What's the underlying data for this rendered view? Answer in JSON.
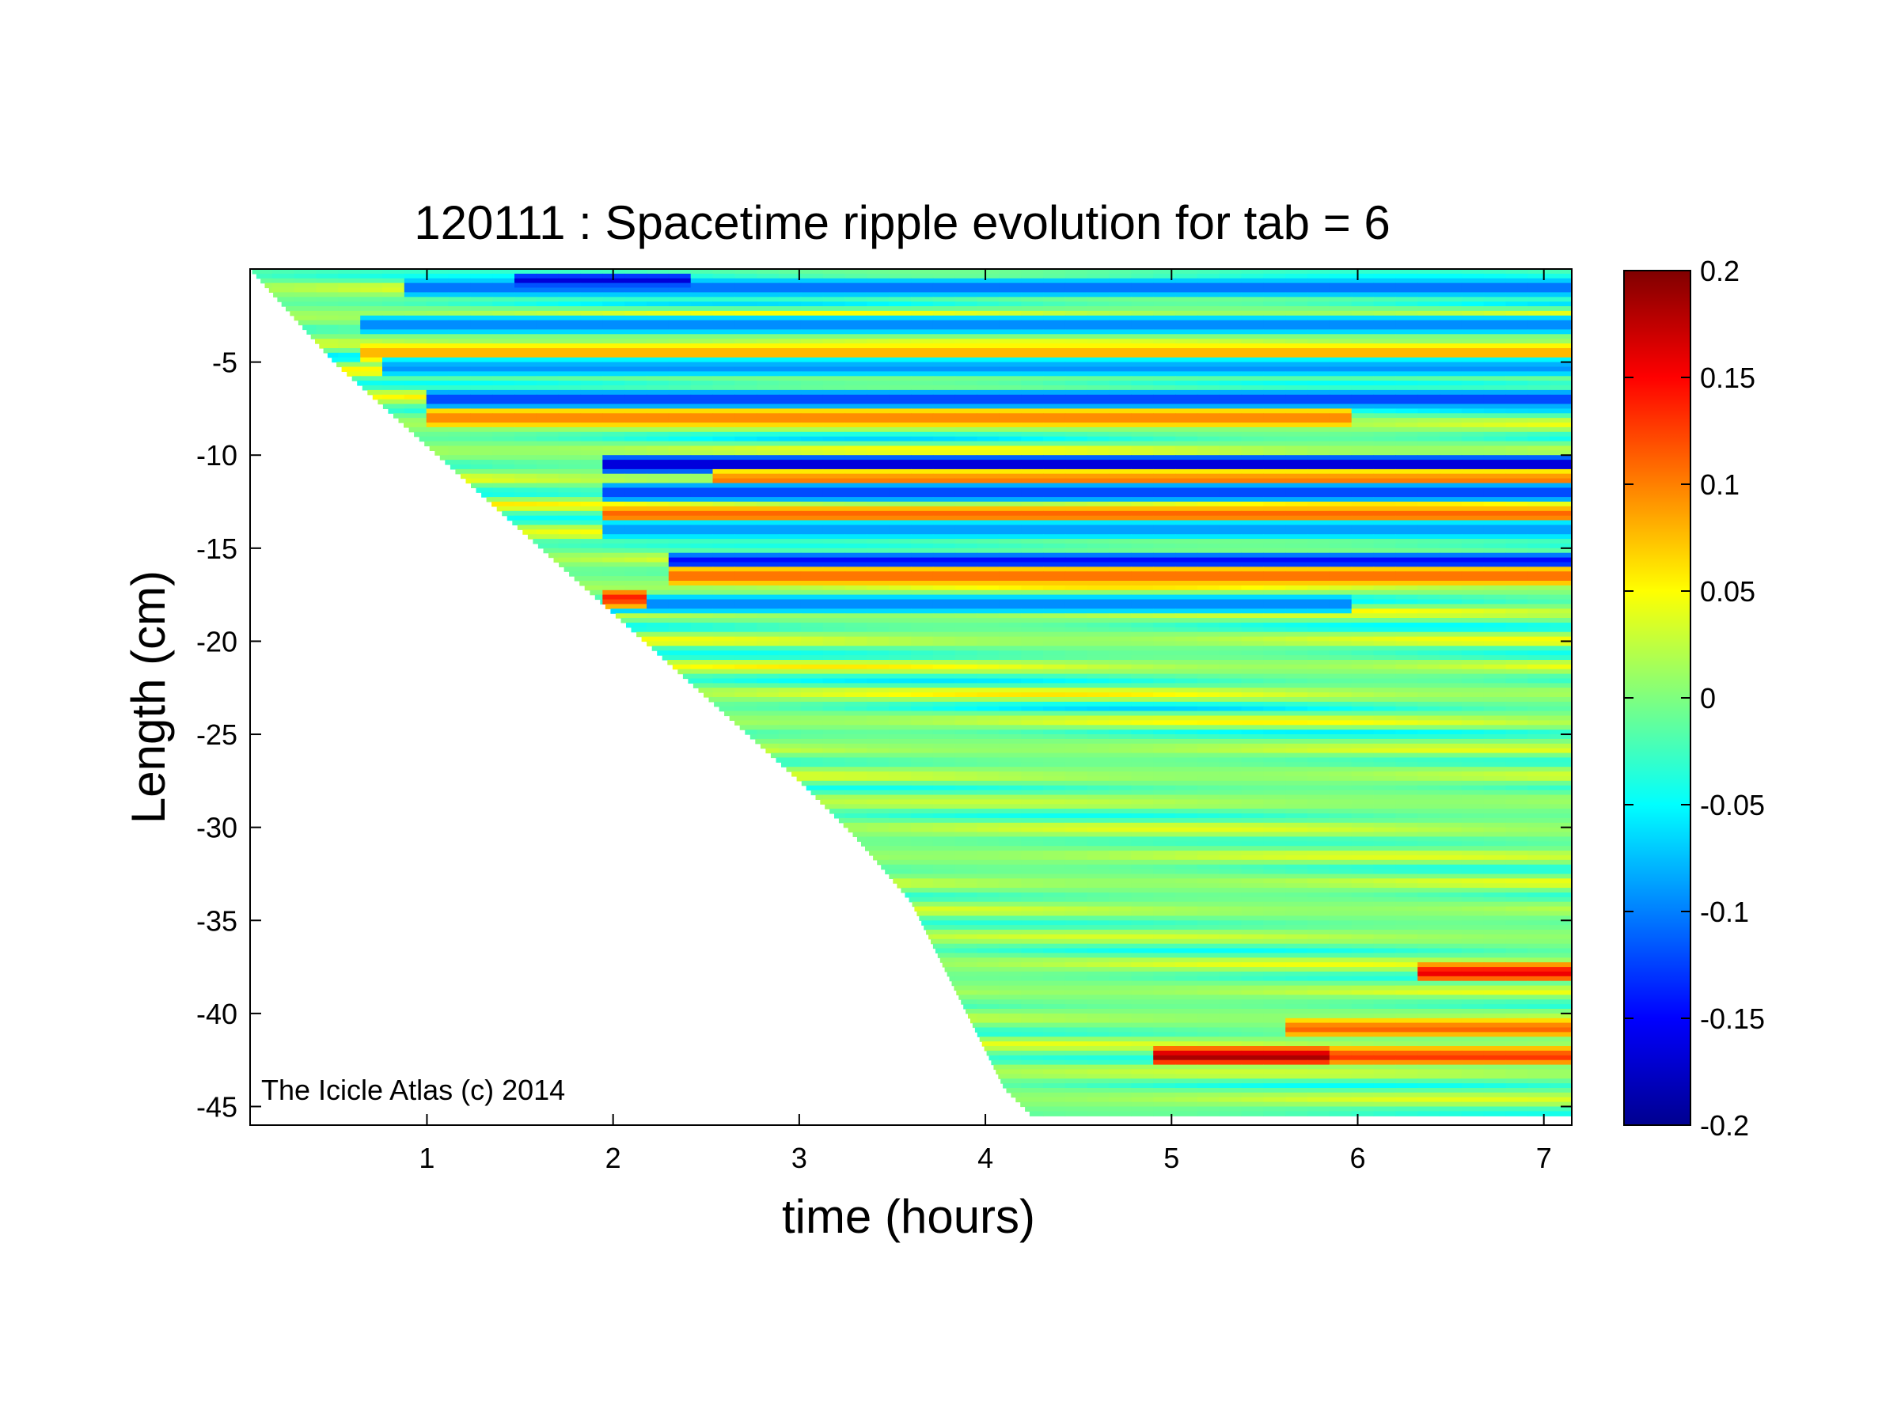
{
  "chart_data": {
    "type": "heatmap",
    "title": "120111 : Spacetime ripple evolution for tab = 6",
    "xlabel": "time (hours)",
    "ylabel": "Length (cm)",
    "xlim": [
      0.05,
      7.15
    ],
    "ylim": [
      -46,
      0
    ],
    "xticks": [
      1,
      2,
      3,
      4,
      5,
      6,
      7
    ],
    "xtick_labels": [
      "1",
      "2",
      "3",
      "4",
      "5",
      "6",
      "7"
    ],
    "yticks": [
      -5,
      -10,
      -15,
      -20,
      -25,
      -30,
      -35,
      -40,
      -45
    ],
    "ytick_labels": [
      "-5",
      "-10",
      "-15",
      "-20",
      "-25",
      "-30",
      "-35",
      "-40",
      "-45"
    ],
    "colormap": "jet",
    "clim": [
      -0.2,
      0.2
    ],
    "colorbar_ticks": [
      0.2,
      0.15,
      0.1,
      0.05,
      0,
      -0.05,
      -0.1,
      -0.15,
      -0.2
    ],
    "colorbar_tick_labels": [
      "0.2",
      "0.15",
      "0.1",
      "0.05",
      "0",
      "-0.05",
      "-0.1",
      "-0.15",
      "-0.2"
    ],
    "grid": false,
    "legend": "none",
    "growth_front": {
      "description_x_hours": [
        0.05,
        0.5,
        1.0,
        1.5,
        2.0,
        2.5,
        3.0,
        3.3,
        3.6,
        3.9,
        4.1,
        4.25
      ],
      "length_cm": [
        0,
        -5,
        -9.5,
        -14,
        -18.5,
        -23,
        -27.5,
        -30.5,
        -34,
        -40,
        -44,
        -45.5
      ]
    },
    "features": [
      {
        "t_start": 0.9,
        "t_end": 7.15,
        "length": -1.0,
        "sign": -1,
        "amp": 0.12
      },
      {
        "t_start": 1.5,
        "t_end": 2.4,
        "length": -0.6,
        "sign": -1,
        "amp": 0.17
      },
      {
        "t_start": 0.6,
        "t_end": 7.15,
        "length": -3.0,
        "sign": -1,
        "amp": 0.11
      },
      {
        "t_start": 0.6,
        "t_end": 7.15,
        "length": -4.5,
        "sign": 1,
        "amp": 0.09
      },
      {
        "t_start": 0.8,
        "t_end": 7.15,
        "length": -5.3,
        "sign": -1,
        "amp": 0.1
      },
      {
        "t_start": 1.0,
        "t_end": 7.15,
        "length": -7.0,
        "sign": -1,
        "amp": 0.14
      },
      {
        "t_start": 1.0,
        "t_end": 6.0,
        "length": -8.0,
        "sign": 1,
        "amp": 0.11
      },
      {
        "t_start": 2.0,
        "t_end": 7.15,
        "length": -10.5,
        "sign": -1,
        "amp": 0.19
      },
      {
        "t_start": 2.5,
        "t_end": 7.15,
        "length": -11.3,
        "sign": 1,
        "amp": 0.11
      },
      {
        "t_start": 2.0,
        "t_end": 7.15,
        "length": -12.0,
        "sign": -1,
        "amp": 0.14
      },
      {
        "t_start": 2.0,
        "t_end": 7.15,
        "length": -13.2,
        "sign": 1,
        "amp": 0.12
      },
      {
        "t_start": 2.0,
        "t_end": 7.15,
        "length": -14.0,
        "sign": -1,
        "amp": 0.1
      },
      {
        "t_start": 2.3,
        "t_end": 7.15,
        "length": -15.7,
        "sign": -1,
        "amp": 0.16
      },
      {
        "t_start": 2.3,
        "t_end": 7.15,
        "length": -16.5,
        "sign": 1,
        "amp": 0.12
      },
      {
        "t_start": 2.0,
        "t_end": 6.0,
        "length": -18.0,
        "sign": -1,
        "amp": 0.11
      },
      {
        "t_start": 1.9,
        "t_end": 2.2,
        "length": -17.7,
        "sign": -1,
        "amp": 0.2
      },
      {
        "t_start": 1.9,
        "t_end": 2.2,
        "length": -17.7,
        "sign": 1,
        "amp": 0.15
      },
      {
        "t_start": 6.3,
        "t_end": 7.15,
        "length": -37.8,
        "sign": 1,
        "amp": 0.17
      },
      {
        "t_start": 4.9,
        "t_end": 5.9,
        "length": -42.3,
        "sign": 1,
        "amp": 0.2
      },
      {
        "t_start": 5.9,
        "t_end": 7.15,
        "length": -42.3,
        "sign": 1,
        "amp": 0.14
      },
      {
        "t_start": 5.6,
        "t_end": 7.15,
        "length": -40.8,
        "sign": 1,
        "amp": 0.12
      }
    ]
  },
  "watermark": "The Icicle Atlas (c) 2014"
}
